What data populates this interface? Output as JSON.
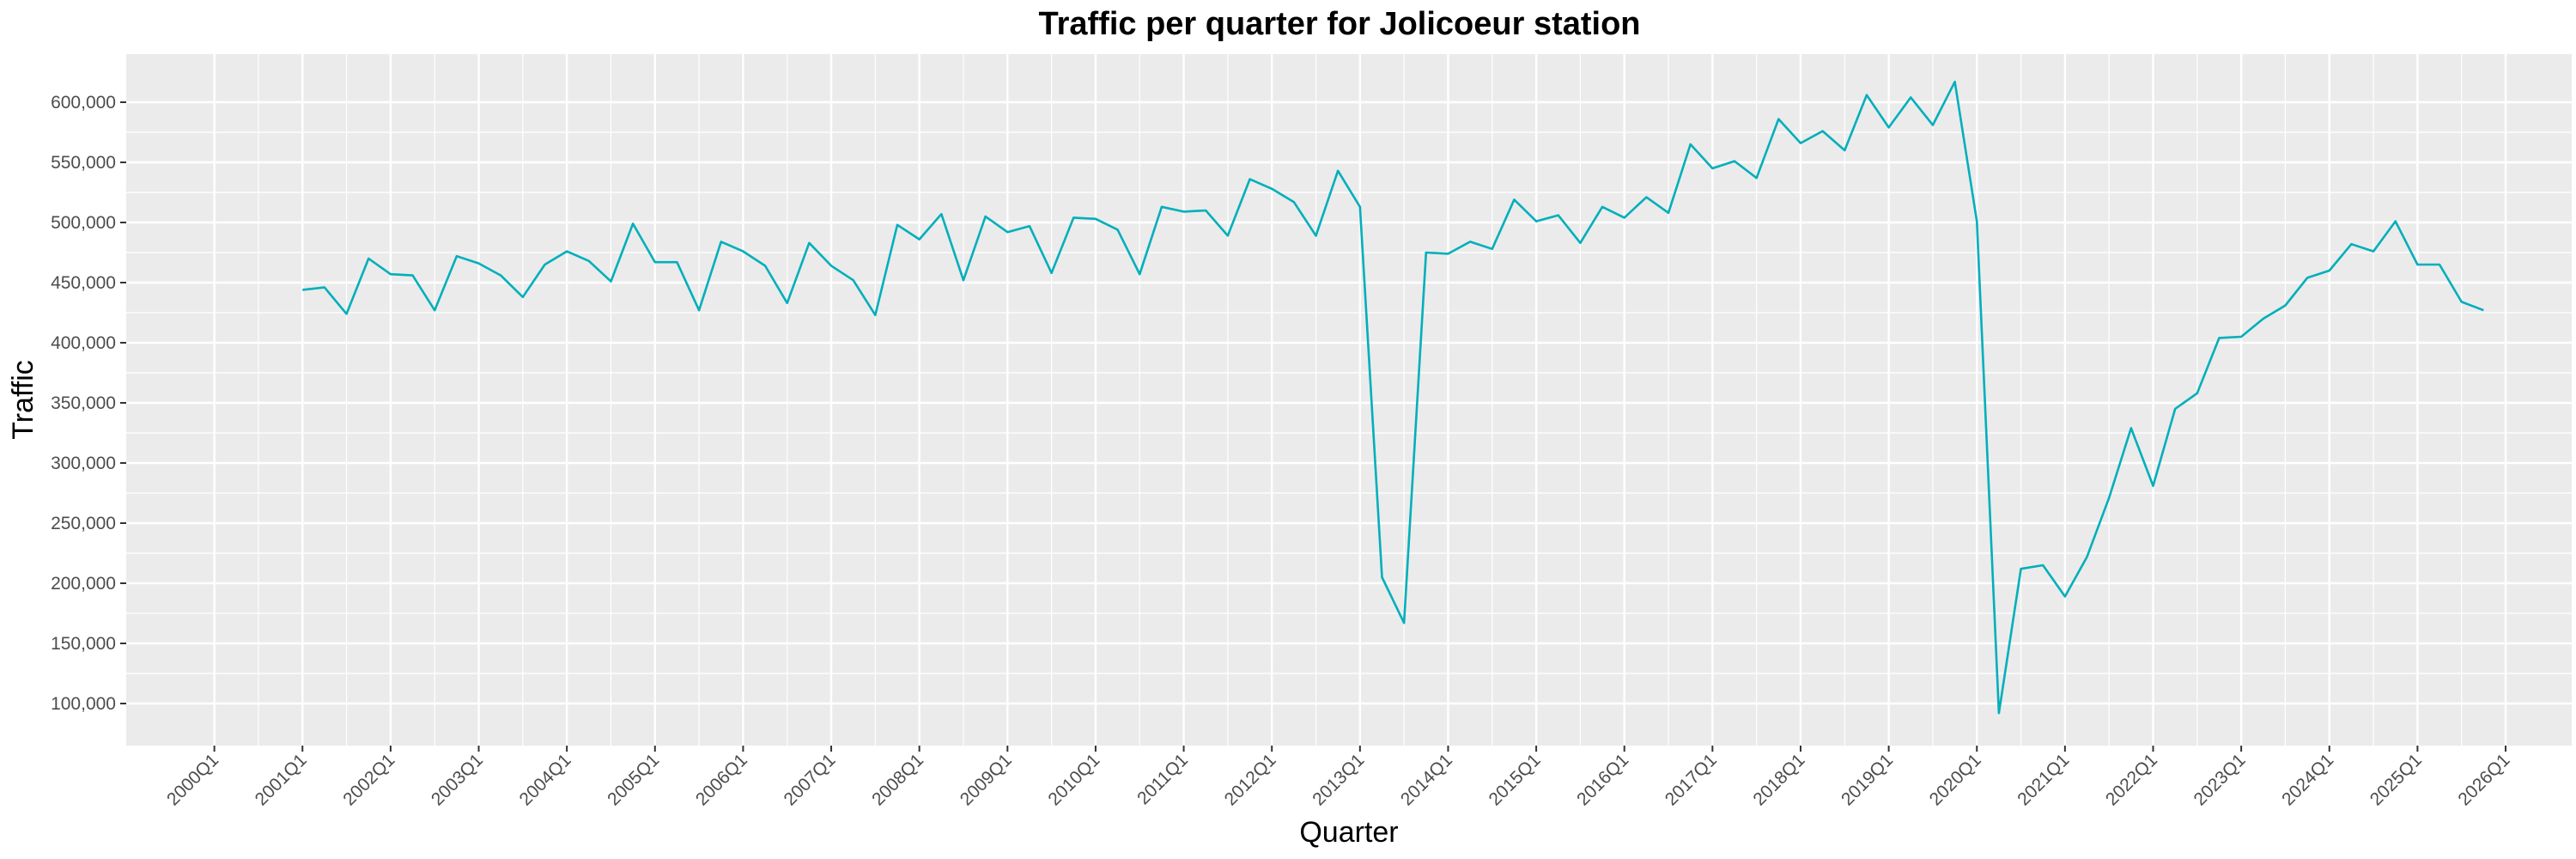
{
  "chart_data": {
    "type": "line",
    "title": "Traffic per quarter for Jolicoeur station",
    "xlabel": "Quarter",
    "ylabel": "Traffic",
    "grid": true,
    "legend": "none",
    "colors": {
      "line": "#00AFBB",
      "panel": "#EBEBEB",
      "grid": "#FFFFFF"
    },
    "xlim": [
      "2000Q1",
      "2026Q1"
    ],
    "ylim": [
      65000,
      640000
    ],
    "x_ticks": [
      "2000Q1",
      "2001Q1",
      "2002Q1",
      "2003Q1",
      "2004Q1",
      "2005Q1",
      "2006Q1",
      "2007Q1",
      "2008Q1",
      "2009Q1",
      "2010Q1",
      "2011Q1",
      "2012Q1",
      "2013Q1",
      "2014Q1",
      "2015Q1",
      "2016Q1",
      "2017Q1",
      "2018Q1",
      "2019Q1",
      "2020Q1",
      "2021Q1",
      "2022Q1",
      "2023Q1",
      "2024Q1",
      "2025Q1",
      "2026Q1"
    ],
    "y_ticks": [
      100000,
      150000,
      200000,
      250000,
      300000,
      350000,
      400000,
      450000,
      500000,
      550000,
      600000
    ],
    "y_tick_labels": [
      "100,000",
      "150,000",
      "200,000",
      "250,000",
      "300,000",
      "350,000",
      "400,000",
      "450,000",
      "500,000",
      "550,000",
      "600,000"
    ],
    "series": [
      {
        "x": [
          "2001Q1",
          "2001Q2",
          "2001Q3",
          "2001Q4",
          "2002Q1",
          "2002Q2",
          "2002Q3",
          "2002Q4",
          "2003Q1",
          "2003Q2",
          "2003Q3",
          "2003Q4",
          "2004Q1",
          "2004Q2",
          "2004Q3",
          "2004Q4",
          "2005Q1",
          "2005Q2",
          "2005Q3",
          "2005Q4",
          "2006Q1",
          "2006Q2",
          "2006Q3",
          "2006Q4",
          "2007Q1",
          "2007Q2",
          "2007Q3",
          "2007Q4",
          "2008Q1",
          "2008Q2",
          "2008Q3",
          "2008Q4",
          "2009Q1",
          "2009Q2",
          "2009Q3",
          "2009Q4",
          "2010Q1",
          "2010Q2",
          "2010Q3",
          "2010Q4",
          "2011Q1",
          "2011Q2",
          "2011Q3",
          "2011Q4",
          "2012Q1",
          "2012Q2",
          "2012Q3",
          "2012Q4",
          "2013Q1",
          "2013Q2",
          "2013Q3",
          "2013Q4",
          "2014Q1",
          "2014Q2",
          "2014Q3",
          "2014Q4",
          "2015Q1",
          "2015Q2",
          "2015Q3",
          "2015Q4",
          "2016Q1",
          "2016Q2",
          "2016Q3",
          "2016Q4",
          "2017Q1",
          "2017Q2",
          "2017Q3",
          "2017Q4",
          "2018Q1",
          "2018Q2",
          "2018Q3",
          "2018Q4",
          "2019Q1",
          "2019Q2",
          "2019Q3",
          "2019Q4",
          "2020Q1",
          "2020Q2",
          "2020Q3",
          "2020Q4",
          "2021Q1",
          "2021Q2",
          "2021Q3",
          "2021Q4",
          "2022Q1",
          "2022Q2",
          "2022Q3",
          "2022Q4",
          "2023Q1",
          "2023Q2",
          "2023Q3",
          "2023Q4",
          "2024Q1",
          "2024Q2",
          "2024Q3",
          "2024Q4",
          "2025Q1",
          "2025Q2",
          "2025Q3",
          "2025Q4"
        ],
        "values": [
          444000,
          446000,
          424000,
          470000,
          457000,
          456000,
          427000,
          472000,
          466000,
          456000,
          438000,
          465000,
          476000,
          468000,
          451000,
          499000,
          467000,
          467000,
          427000,
          484000,
          476000,
          464000,
          433000,
          483000,
          464000,
          452000,
          423000,
          498000,
          486000,
          507000,
          452000,
          505000,
          492000,
          497000,
          458000,
          504000,
          503000,
          494000,
          457000,
          513000,
          509000,
          510000,
          489000,
          536000,
          528000,
          517000,
          489000,
          543000,
          513000,
          205000,
          167000,
          475000,
          474000,
          484000,
          478000,
          519000,
          501000,
          506000,
          483000,
          513000,
          504000,
          521000,
          508000,
          565000,
          545000,
          551000,
          537000,
          586000,
          566000,
          576000,
          560000,
          606000,
          579000,
          604000,
          581000,
          617000,
          501000,
          92000,
          212000,
          215000,
          189000,
          222000,
          271000,
          329000,
          281000,
          345000,
          358000,
          404000,
          405000,
          420000,
          431000,
          454000,
          460000,
          482000,
          476000,
          501000,
          465000,
          465000,
          434000,
          427000
        ]
      }
    ]
  }
}
